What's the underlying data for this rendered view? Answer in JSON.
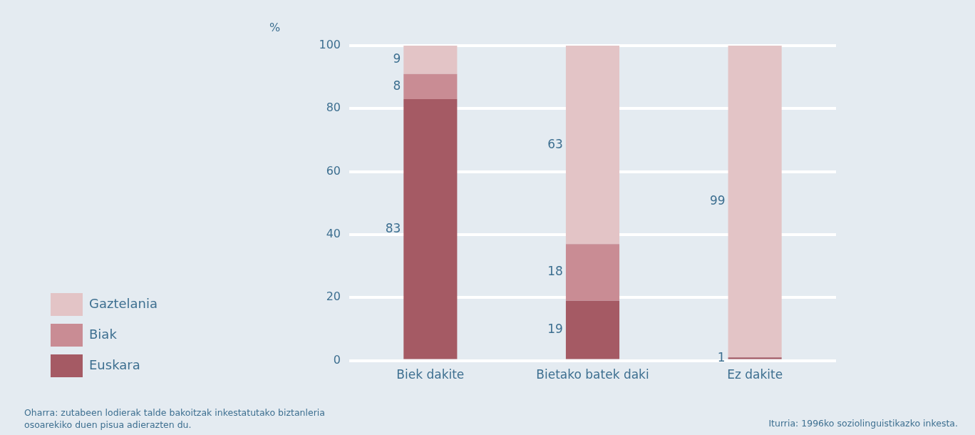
{
  "chart_data": {
    "type": "bar",
    "stacked": true,
    "ylabel": "%",
    "categories": [
      "Biek dakite",
      "Bietako batek daki",
      "Ez dakite"
    ],
    "series": [
      {
        "name": "Euskara",
        "color": "#a55a64",
        "values": [
          83,
          19,
          1
        ],
        "value_labels": [
          "83",
          "19",
          "1"
        ]
      },
      {
        "name": "Biak",
        "color": "#c98c94",
        "values": [
          8,
          18,
          null
        ],
        "value_labels": [
          "8",
          "18",
          null
        ]
      },
      {
        "name": "Gaztelania",
        "color": "#e3c4c6",
        "values": [
          9,
          63,
          99
        ],
        "value_labels": [
          "9",
          "63",
          "99"
        ]
      }
    ],
    "ylim": [
      0,
      100
    ],
    "yticks": [
      0,
      20,
      40,
      60,
      80,
      100
    ],
    "grid": "y",
    "legend": "bottom left",
    "annotations": [
      "Oharra: zutabeen lodierak talde bakoitzak inkestatutako biztanleria osoarekiko duen pisua adierazten du.",
      "Iturria: 1996ko soziolinguistikazko inkesta."
    ]
  }
}
